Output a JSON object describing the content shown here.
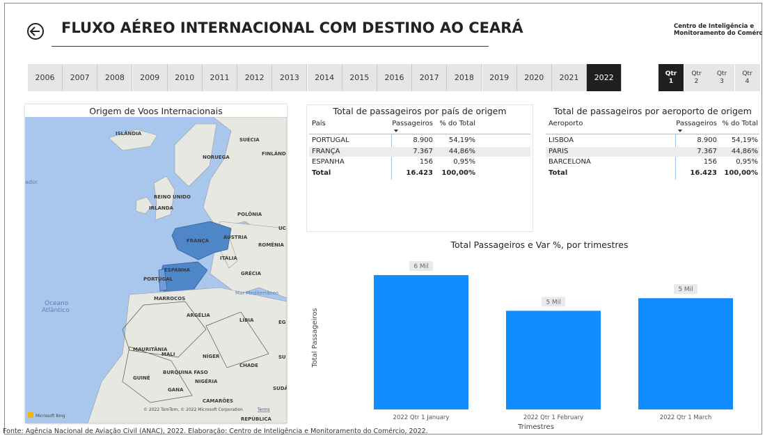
{
  "header": {
    "title": "FLUXO AÉREO INTERNACIONAL COM DESTINO AO CEARÁ",
    "org_line1": "Centro de Inteligência e",
    "org_line2": "Monitoramento do Comérc"
  },
  "years": [
    {
      "label": "2006"
    },
    {
      "label": "2007"
    },
    {
      "label": "2008"
    },
    {
      "label": "2009"
    },
    {
      "label": "2010"
    },
    {
      "label": "2011"
    },
    {
      "label": "2012"
    },
    {
      "label": "2013"
    },
    {
      "label": "2014"
    },
    {
      "label": "2015"
    },
    {
      "label": "2016"
    },
    {
      "label": "2017"
    },
    {
      "label": "2018"
    },
    {
      "label": "2019"
    },
    {
      "label": "2020"
    },
    {
      "label": "2021"
    },
    {
      "label": "2022",
      "active": true
    }
  ],
  "quarters": [
    {
      "top": "Qtr",
      "bottom": "1",
      "active": true
    },
    {
      "top": "Qtr",
      "bottom": "2"
    },
    {
      "top": "Qtr",
      "bottom": "3"
    },
    {
      "top": "Qtr",
      "bottom": "4"
    }
  ],
  "map": {
    "title": "Origem de Voos Internacionais",
    "labels": [
      "ISLÂNDIA",
      "SUÉCIA",
      "FINLÂND",
      "NORUEGA",
      "REINO UNIDO",
      "IRLANDA",
      "POLÔNIA",
      "FRANÇA",
      "ÁUSTRIA",
      "ROMÊNIA",
      "ITÁLIA",
      "ESPANHA",
      "PORTUGAL",
      "GRÉCIA",
      "Mar Mediterrâneo",
      "MARROCOS",
      "Oceano",
      "Atlântico",
      "ARGÉLIA",
      "LÍBIA",
      "MAURITÂNIA",
      "MALI",
      "NÍGER",
      "CHADE",
      "BURQUINA FASO",
      "GUINÉ",
      "NIGÉRIA",
      "GANA",
      "CAMARÕES",
      "REPÚBLICA",
      "ador",
      "UC",
      "EG",
      "SU",
      "SUDÃ"
    ],
    "attribution": "© 2022 TomTom, © 2022 Microsoft Corporation",
    "terms": "Terms",
    "bing": "Microsoft Bing"
  },
  "table_country": {
    "title": "Total de passageiros por país de origem",
    "columns": [
      "País",
      "Passageiros",
      "% do Total"
    ],
    "rows": [
      [
        "PORTUGAL",
        "8.900",
        "54,19%"
      ],
      [
        "FRANÇA",
        "7.367",
        "44,86%"
      ],
      [
        "ESPANHA",
        "156",
        "0,95%"
      ]
    ],
    "total": [
      "Total",
      "16.423",
      "100,00%"
    ]
  },
  "table_airport": {
    "title": "Total de passageiros por aeroporto de origem",
    "columns": [
      "Aeroporto",
      "Passageiros",
      "% do Total"
    ],
    "rows": [
      [
        "LISBOA",
        "8.900",
        "54,19%"
      ],
      [
        "PARIS",
        "7.367",
        "44,86%"
      ],
      [
        "BARCELONA",
        "156",
        "0,95%"
      ]
    ],
    "total": [
      "Total",
      "16.423",
      "100,00%"
    ]
  },
  "chart_data": {
    "type": "bar",
    "title": "Total Passageiros e Var %, por trimestres",
    "categories": [
      "2022 Qtr 1 January",
      "2022 Qtr 1 February",
      "2022 Qtr 1 March"
    ],
    "values": [
      6.4,
      4.7,
      5.3
    ],
    "value_labels": [
      "6 Mil",
      "5 Mil",
      "5 Mil"
    ],
    "color": "#118dff",
    "ylim": [
      0,
      7
    ],
    "x_label": "Trimestres",
    "y_label": "Total Passageiros"
  },
  "footer": "Fonte: Agência Nacional de Aviação Civil (ANAC), 2022. Elaboração: Centro de Inteligência e Monitoramento do Comércio, 2022."
}
